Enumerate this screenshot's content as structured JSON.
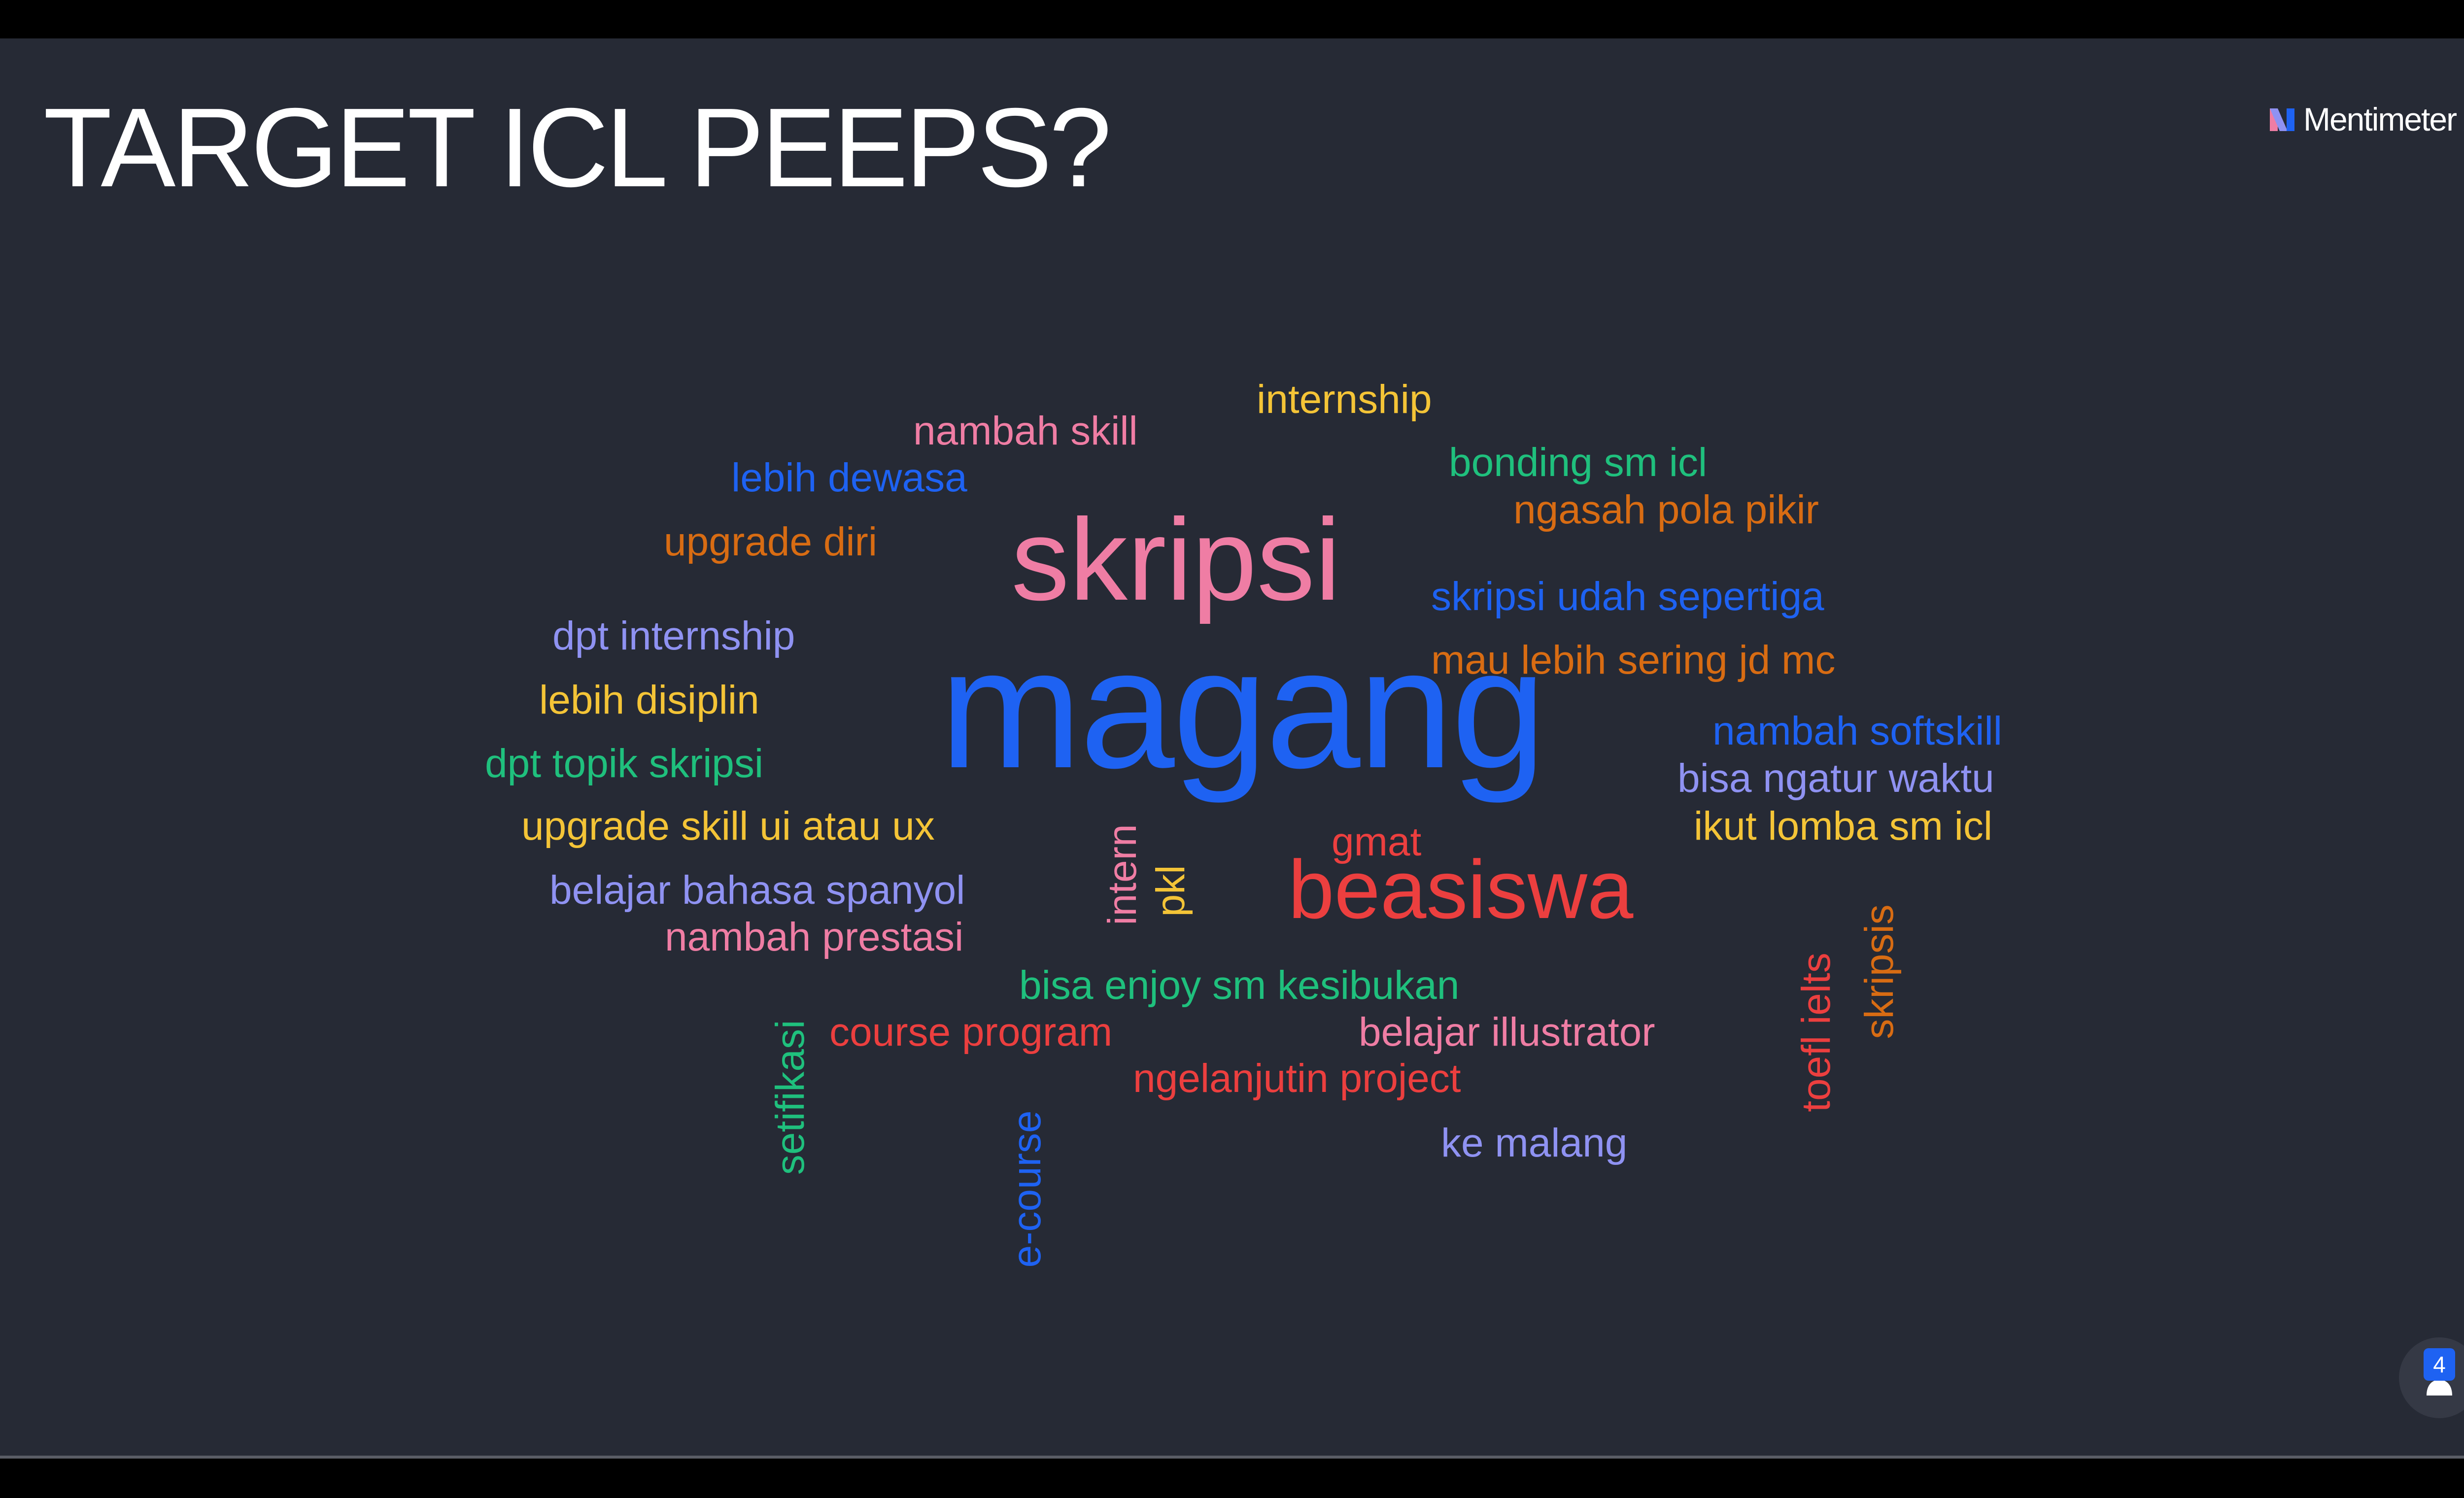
{
  "slide": {
    "title": "TARGET ICL PEEPS?",
    "brand": "Mentimeter",
    "participant_count": "4",
    "colors": {
      "background": "#262a35",
      "title": "#ffffff"
    }
  },
  "word_cloud": [
    {
      "text": "magang",
      "color": "#1e62f2"
    },
    {
      "text": "skripsi",
      "color": "#ef7da4"
    },
    {
      "text": "beasiswa",
      "color": "#ec3f3f"
    },
    {
      "text": "internship",
      "color": "#f4c437"
    },
    {
      "text": "nambah skill",
      "color": "#ef7da4"
    },
    {
      "text": "lebih dewasa",
      "color": "#1e62f2"
    },
    {
      "text": "bonding sm icl",
      "color": "#1fc07d"
    },
    {
      "text": "ngasah pola pikir",
      "color": "#d86c13"
    },
    {
      "text": "upgrade diri",
      "color": "#d86c13"
    },
    {
      "text": "skripsi udah sepertiga",
      "color": "#1e62f2"
    },
    {
      "text": "dpt internship",
      "color": "#8f92f2"
    },
    {
      "text": "mau lebih sering jd mc",
      "color": "#d86c13"
    },
    {
      "text": "lebih disiplin",
      "color": "#f4c437"
    },
    {
      "text": "nambah softskill",
      "color": "#1e62f2"
    },
    {
      "text": "dpt topik skripsi",
      "color": "#1fc07d"
    },
    {
      "text": "bisa ngatur waktu",
      "color": "#8f92f2"
    },
    {
      "text": "upgrade skill ui atau ux",
      "color": "#f4c437"
    },
    {
      "text": "ikut lomba sm icl",
      "color": "#f4c437"
    },
    {
      "text": "gmat",
      "color": "#ec3f3f"
    },
    {
      "text": "belajar bahasa spanyol",
      "color": "#8f92f2"
    },
    {
      "text": "nambah prestasi",
      "color": "#ef7da4"
    },
    {
      "text": "bisa enjoy sm kesibukan",
      "color": "#1fc07d"
    },
    {
      "text": "course program",
      "color": "#ec3f3f"
    },
    {
      "text": "belajar illustrator",
      "color": "#ef7da4"
    },
    {
      "text": "ngelanjutin project",
      "color": "#ec3f3f"
    },
    {
      "text": "ke malang",
      "color": "#8f92f2"
    },
    {
      "text": "intern",
      "color": "#ef7da4"
    },
    {
      "text": "pkl",
      "color": "#f4c437"
    },
    {
      "text": "setifikasi",
      "color": "#1fc07d"
    },
    {
      "text": "e-course",
      "color": "#1e62f2"
    },
    {
      "text": "toefl ielts",
      "color": "#ec3f3f"
    },
    {
      "text": "skripsis",
      "color": "#d86c13"
    }
  ],
  "icons": {
    "brand_logo": "mentimeter-logo-icon",
    "participants": "person-icon"
  }
}
